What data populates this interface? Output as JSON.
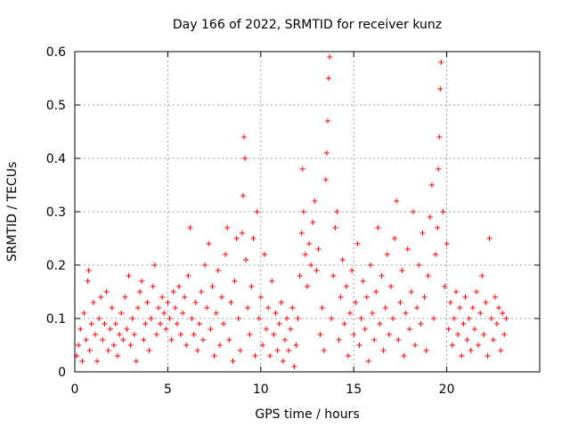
{
  "chart_data": {
    "type": "scatter",
    "title": "Day 166 of 2022, SRMTID for receiver kunz",
    "xlabel": "GPS time / hours",
    "ylabel": "SRMTID / TECUs",
    "xlim": [
      0,
      25
    ],
    "ylim": [
      0,
      0.6
    ],
    "xticks": [
      0,
      5,
      10,
      15,
      20
    ],
    "xtick_labels": [
      "0",
      "5",
      "10",
      "15",
      "20"
    ],
    "yticks": [
      0,
      0.1,
      0.2,
      0.3,
      0.4,
      0.5,
      0.6
    ],
    "ytick_labels": [
      "0",
      "0.1",
      "0.2",
      "0.3",
      "0.4",
      "0.5",
      "0.6"
    ],
    "grid": true,
    "marker": "+",
    "color": "#ff0000",
    "series": [
      {
        "name": "SRMTID",
        "points": [
          [
            0.1,
            0.03
          ],
          [
            0.2,
            0.05
          ],
          [
            0.3,
            0.08
          ],
          [
            0.4,
            0.02
          ],
          [
            0.5,
            0.11
          ],
          [
            0.6,
            0.06
          ],
          [
            0.7,
            0.17
          ],
          [
            0.75,
            0.19
          ],
          [
            0.8,
            0.04
          ],
          [
            0.9,
            0.09
          ],
          [
            1.0,
            0.13
          ],
          [
            1.1,
            0.07
          ],
          [
            1.2,
            0.02
          ],
          [
            1.3,
            0.1
          ],
          [
            1.4,
            0.14
          ],
          [
            1.5,
            0.06
          ],
          [
            1.6,
            0.09
          ],
          [
            1.7,
            0.15
          ],
          [
            1.8,
            0.04
          ],
          [
            1.9,
            0.08
          ],
          [
            2.0,
            0.12
          ],
          [
            2.1,
            0.05
          ],
          [
            2.2,
            0.09
          ],
          [
            2.3,
            0.03
          ],
          [
            2.4,
            0.07
          ],
          [
            2.5,
            0.11
          ],
          [
            2.6,
            0.06
          ],
          [
            2.7,
            0.14
          ],
          [
            2.8,
            0.08
          ],
          [
            2.9,
            0.18
          ],
          [
            3.0,
            0.05
          ],
          [
            3.1,
            0.1
          ],
          [
            3.2,
            0.07
          ],
          [
            3.3,
            0.02
          ],
          [
            3.4,
            0.12
          ],
          [
            3.5,
            0.15
          ],
          [
            3.6,
            0.17
          ],
          [
            3.7,
            0.06
          ],
          [
            3.8,
            0.09
          ],
          [
            3.9,
            0.13
          ],
          [
            4.0,
            0.04
          ],
          [
            4.1,
            0.1
          ],
          [
            4.2,
            0.16
          ],
          [
            4.3,
            0.2
          ],
          [
            4.4,
            0.07
          ],
          [
            4.5,
            0.12
          ],
          [
            4.6,
            0.09
          ],
          [
            4.7,
            0.14
          ],
          [
            4.8,
            0.11
          ],
          [
            4.9,
            0.08
          ],
          [
            5.0,
            0.13
          ],
          [
            5.1,
            0.1
          ],
          [
            5.2,
            0.06
          ],
          [
            5.3,
            0.15
          ],
          [
            5.4,
            0.12
          ],
          [
            5.5,
            0.09
          ],
          [
            5.6,
            0.16
          ],
          [
            5.7,
            0.07
          ],
          [
            5.8,
            0.11
          ],
          [
            5.9,
            0.14
          ],
          [
            6.0,
            0.05
          ],
          [
            6.1,
            0.18
          ],
          [
            6.2,
            0.27
          ],
          [
            6.3,
            0.1
          ],
          [
            6.4,
            0.07
          ],
          [
            6.5,
            0.13
          ],
          [
            6.6,
            0.04
          ],
          [
            6.7,
            0.09
          ],
          [
            6.8,
            0.15
          ],
          [
            6.9,
            0.06
          ],
          [
            7.0,
            0.2
          ],
          [
            7.1,
            0.12
          ],
          [
            7.2,
            0.24
          ],
          [
            7.3,
            0.08
          ],
          [
            7.4,
            0.16
          ],
          [
            7.5,
            0.03
          ],
          [
            7.6,
            0.11
          ],
          [
            7.7,
            0.19
          ],
          [
            7.8,
            0.05
          ],
          [
            7.9,
            0.14
          ],
          [
            8.0,
            0.09
          ],
          [
            8.1,
            0.22
          ],
          [
            8.2,
            0.27
          ],
          [
            8.3,
            0.06
          ],
          [
            8.4,
            0.13
          ],
          [
            8.5,
            0.02
          ],
          [
            8.6,
            0.17
          ],
          [
            8.7,
            0.25
          ],
          [
            8.8,
            0.1
          ],
          [
            8.9,
            0.04
          ],
          [
            9.0,
            0.26
          ],
          [
            9.05,
            0.33
          ],
          [
            9.1,
            0.44
          ],
          [
            9.15,
            0.4
          ],
          [
            9.2,
            0.21
          ],
          [
            9.3,
            0.12
          ],
          [
            9.4,
            0.07
          ],
          [
            9.5,
            0.16
          ],
          [
            9.6,
            0.25
          ],
          [
            9.7,
            0.03
          ],
          [
            9.8,
            0.3
          ],
          [
            9.9,
            0.1
          ],
          [
            10.0,
            0.14
          ],
          [
            10.1,
            0.05
          ],
          [
            10.2,
            0.22
          ],
          [
            10.3,
            0.08
          ],
          [
            10.4,
            0.12
          ],
          [
            10.5,
            0.03
          ],
          [
            10.6,
            0.17
          ],
          [
            10.7,
            0.07
          ],
          [
            10.8,
            0.11
          ],
          [
            10.9,
            0.04
          ],
          [
            11.0,
            0.09
          ],
          [
            11.1,
            0.13
          ],
          [
            11.2,
            0.02
          ],
          [
            11.3,
            0.06
          ],
          [
            11.4,
            0.1
          ],
          [
            11.5,
            0.04
          ],
          [
            11.6,
            0.08
          ],
          [
            11.7,
            0.12
          ],
          [
            11.8,
            0.01
          ],
          [
            11.9,
            0.05
          ],
          [
            12.0,
            0.1
          ],
          [
            12.1,
            0.18
          ],
          [
            12.2,
            0.26
          ],
          [
            12.25,
            0.38
          ],
          [
            12.3,
            0.3
          ],
          [
            12.4,
            0.22
          ],
          [
            12.5,
            0.16
          ],
          [
            12.6,
            0.24
          ],
          [
            12.7,
            0.2
          ],
          [
            12.8,
            0.28
          ],
          [
            12.9,
            0.32
          ],
          [
            13.0,
            0.19
          ],
          [
            13.1,
            0.23
          ],
          [
            13.2,
            0.07
          ],
          [
            13.3,
            0.12
          ],
          [
            13.4,
            0.04
          ],
          [
            13.5,
            0.36
          ],
          [
            13.55,
            0.41
          ],
          [
            13.6,
            0.47
          ],
          [
            13.65,
            0.55
          ],
          [
            13.7,
            0.59
          ],
          [
            13.8,
            0.1
          ],
          [
            13.9,
            0.18
          ],
          [
            14.0,
            0.27
          ],
          [
            14.1,
            0.3
          ],
          [
            14.2,
            0.06
          ],
          [
            14.3,
            0.14
          ],
          [
            14.4,
            0.21
          ],
          [
            14.5,
            0.09
          ],
          [
            14.6,
            0.16
          ],
          [
            14.7,
            0.03
          ],
          [
            14.8,
            0.11
          ],
          [
            14.9,
            0.19
          ],
          [
            15.0,
            0.07
          ],
          [
            15.1,
            0.13
          ],
          [
            15.2,
            0.24
          ],
          [
            15.3,
            0.05
          ],
          [
            15.4,
            0.1
          ],
          [
            15.5,
            0.17
          ],
          [
            15.6,
            0.08
          ],
          [
            15.7,
            0.14
          ],
          [
            15.8,
            0.02
          ],
          [
            15.9,
            0.2
          ],
          [
            16.0,
            0.11
          ],
          [
            16.1,
            0.06
          ],
          [
            16.2,
            0.15
          ],
          [
            16.3,
            0.27
          ],
          [
            16.4,
            0.09
          ],
          [
            16.5,
            0.18
          ],
          [
            16.6,
            0.04
          ],
          [
            16.7,
            0.12
          ],
          [
            16.8,
            0.22
          ],
          [
            16.9,
            0.07
          ],
          [
            17.0,
            0.16
          ],
          [
            17.1,
            0.1
          ],
          [
            17.2,
            0.25
          ],
          [
            17.3,
            0.32
          ],
          [
            17.4,
            0.06
          ],
          [
            17.5,
            0.13
          ],
          [
            17.6,
            0.19
          ],
          [
            17.7,
            0.03
          ],
          [
            17.8,
            0.11
          ],
          [
            17.9,
            0.23
          ],
          [
            18.0,
            0.08
          ],
          [
            18.1,
            0.15
          ],
          [
            18.2,
            0.3
          ],
          [
            18.3,
            0.05
          ],
          [
            18.4,
            0.12
          ],
          [
            18.5,
            0.2
          ],
          [
            18.6,
            0.09
          ],
          [
            18.7,
            0.26
          ],
          [
            18.8,
            0.14
          ],
          [
            18.9,
            0.04
          ],
          [
            19.0,
            0.18
          ],
          [
            19.1,
            0.29
          ],
          [
            19.2,
            0.35
          ],
          [
            19.3,
            0.1
          ],
          [
            19.4,
            0.22
          ],
          [
            19.5,
            0.27
          ],
          [
            19.55,
            0.38
          ],
          [
            19.6,
            0.44
          ],
          [
            19.65,
            0.53
          ],
          [
            19.7,
            0.58
          ],
          [
            19.8,
            0.3
          ],
          [
            19.9,
            0.16
          ],
          [
            20.0,
            0.24
          ],
          [
            20.1,
            0.08
          ],
          [
            20.2,
            0.13
          ],
          [
            20.3,
            0.05
          ],
          [
            20.4,
            0.1
          ],
          [
            20.5,
            0.15
          ],
          [
            20.6,
            0.07
          ],
          [
            20.7,
            0.12
          ],
          [
            20.8,
            0.03
          ],
          [
            20.9,
            0.09
          ],
          [
            21.0,
            0.14
          ],
          [
            21.1,
            0.06
          ],
          [
            21.2,
            0.1
          ],
          [
            21.3,
            0.04
          ],
          [
            21.4,
            0.12
          ],
          [
            21.5,
            0.08
          ],
          [
            21.6,
            0.15
          ],
          [
            21.7,
            0.05
          ],
          [
            21.8,
            0.11
          ],
          [
            21.9,
            0.18
          ],
          [
            22.0,
            0.07
          ],
          [
            22.1,
            0.13
          ],
          [
            22.2,
            0.03
          ],
          [
            22.3,
            0.25
          ],
          [
            22.4,
            0.1
          ],
          [
            22.5,
            0.06
          ],
          [
            22.6,
            0.14
          ],
          [
            22.7,
            0.09
          ],
          [
            22.8,
            0.12
          ],
          [
            22.9,
            0.04
          ],
          [
            23.0,
            0.11
          ],
          [
            23.1,
            0.07
          ],
          [
            23.2,
            0.1
          ]
        ]
      }
    ]
  }
}
